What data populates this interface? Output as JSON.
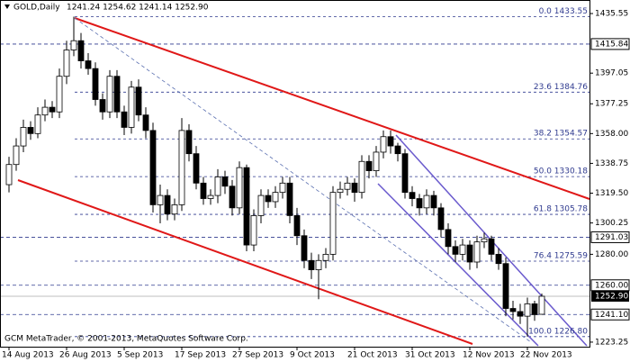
{
  "chart_data": {
    "type": "candlestick",
    "title": "GOLD,Daily",
    "ohlc_label": "1241.24 1254.62 1241.14 1252.90",
    "footer": "GCM MetaTrader, © 2001-2013, MetaQuotes Software Corp.",
    "categories": [
      "14 Aug 2013",
      null,
      null,
      null,
      null,
      null,
      null,
      null,
      "26 Aug 2013",
      null,
      null,
      null,
      null,
      null,
      null,
      null,
      "5 Sep 2013",
      null,
      null,
      null,
      null,
      null,
      null,
      null,
      "17 Sep 2013",
      null,
      null,
      null,
      null,
      null,
      null,
      null,
      "27 Sep 2013",
      null,
      null,
      null,
      null,
      null,
      null,
      null,
      "9 Oct 2013",
      null,
      null,
      null,
      null,
      null,
      null,
      null,
      "21 Oct 2013",
      null,
      null,
      null,
      null,
      null,
      null,
      null,
      "31 Oct 2013",
      null,
      null,
      null,
      null,
      null,
      null,
      null,
      "12 Nov 2013",
      null,
      null,
      null,
      null,
      null,
      null,
      null,
      "22 Nov 2013",
      null,
      null
    ],
    "open": [
      1325,
      1338,
      1350,
      1362,
      1358,
      1370,
      1375,
      1372,
      1395,
      1412,
      1418,
      1405,
      1400,
      1380,
      1372,
      1395,
      1372,
      1362,
      1388,
      1370,
      1360,
      1312,
      1318,
      1306,
      1312,
      1360,
      1345,
      1326,
      1316,
      1318,
      1330,
      1324,
      1310,
      1336,
      1286,
      1305,
      1318,
      1314,
      1320,
      1326,
      1305,
      1292,
      1276,
      1270,
      1276,
      1280,
      1320,
      1322,
      1326,
      1320,
      1340,
      1334,
      1346,
      1356,
      1350,
      1345,
      1320,
      1316,
      1310,
      1318,
      1310,
      1296,
      1285,
      1280,
      1286,
      1275,
      1288,
      1290,
      1280,
      1274,
      1245,
      1243,
      1240,
      1248,
      1241.24
    ],
    "high": [
      1343,
      1355,
      1367,
      1366,
      1375,
      1380,
      1379,
      1400,
      1418,
      1433.55,
      1423,
      1410,
      1404,
      1384,
      1399,
      1399,
      1376,
      1392,
      1393,
      1375,
      1365,
      1325,
      1322,
      1316,
      1368,
      1364,
      1350,
      1330,
      1322,
      1335,
      1334,
      1328,
      1340,
      1338,
      1309,
      1322,
      1322,
      1324,
      1330,
      1330,
      1310,
      1296,
      1281,
      1280,
      1284,
      1324,
      1327,
      1330,
      1329,
      1344,
      1344,
      1350,
      1360,
      1360,
      1352,
      1348,
      1324,
      1319,
      1322,
      1321,
      1313,
      1300,
      1289,
      1290,
      1289,
      1292,
      1294,
      1292,
      1284,
      1278,
      1250,
      1248,
      1252,
      1250,
      1254.62
    ],
    "low": [
      1320,
      1334,
      1346,
      1354,
      1355,
      1366,
      1368,
      1368,
      1390,
      1408,
      1400,
      1396,
      1376,
      1367,
      1368,
      1368,
      1357,
      1358,
      1366,
      1355,
      1307,
      1300,
      1302,
      1302,
      1308,
      1340,
      1322,
      1312,
      1312,
      1313,
      1319,
      1305,
      1306,
      1282,
      1282,
      1300,
      1310,
      1310,
      1316,
      1300,
      1286,
      1271,
      1264,
      1251,
      1271,
      1276,
      1316,
      1318,
      1314,
      1316,
      1329,
      1330,
      1342,
      1345,
      1340,
      1316,
      1311,
      1305,
      1306,
      1305,
      1291,
      1280,
      1275,
      1276,
      1270,
      1271,
      1284,
      1276,
      1270,
      1240,
      1238,
      1235,
      1226.8,
      1237,
      1241.14
    ],
    "close": [
      1338,
      1350,
      1362,
      1358,
      1370,
      1375,
      1372,
      1395,
      1412,
      1418,
      1405,
      1400,
      1380,
      1372,
      1395,
      1372,
      1362,
      1388,
      1370,
      1360,
      1312,
      1318,
      1306,
      1312,
      1360,
      1345,
      1326,
      1316,
      1318,
      1330,
      1324,
      1310,
      1336,
      1286,
      1305,
      1318,
      1314,
      1320,
      1326,
      1305,
      1292,
      1276,
      1270,
      1276,
      1280,
      1320,
      1322,
      1326,
      1320,
      1340,
      1334,
      1346,
      1356,
      1350,
      1345,
      1320,
      1316,
      1310,
      1318,
      1310,
      1296,
      1285,
      1280,
      1286,
      1275,
      1288,
      1290,
      1280,
      1274,
      1245,
      1243,
      1240,
      1248,
      1241,
      1252.9
    ],
    "up_color": "#ffffff",
    "down_color": "#000000",
    "ylim": [
      1220.3,
      1444.3
    ],
    "yticks": [
      1435.55,
      1397.05,
      1377.25,
      {
        "value": 1358,
        "label": "1358.00"
      },
      1338.75,
      {
        "value": 1319.5,
        "label": "1319.50"
      },
      1300.25,
      {
        "value": 1280,
        "label": "1280.00"
      },
      1223.25
    ],
    "levels": [
      1415.84,
      1291.03,
      {
        "value": 1260,
        "label": "1260.00"
      },
      {
        "value": 1241.1,
        "label": "1241.10"
      }
    ],
    "last_price": {
      "value": 1252.9,
      "label": "1252.90"
    },
    "fib_color": "#2f3a8f",
    "fib_levels": [
      {
        "value": 1433.55,
        "label": "0.0 1433.55"
      },
      {
        "value": 1384.76,
        "label": "23.6 1384.76"
      },
      {
        "value": 1354.57,
        "label": "38.2 1354.57"
      },
      {
        "value": 1330.18,
        "label": "50.0 1330.18"
      },
      {
        "value": 1305.78,
        "label": "61.8 1305.78"
      },
      {
        "value": 1275.59,
        "label": "76.4 1275.59"
      },
      {
        "value": 1226.8,
        "label": "100.0 1226.80"
      }
    ]
  }
}
